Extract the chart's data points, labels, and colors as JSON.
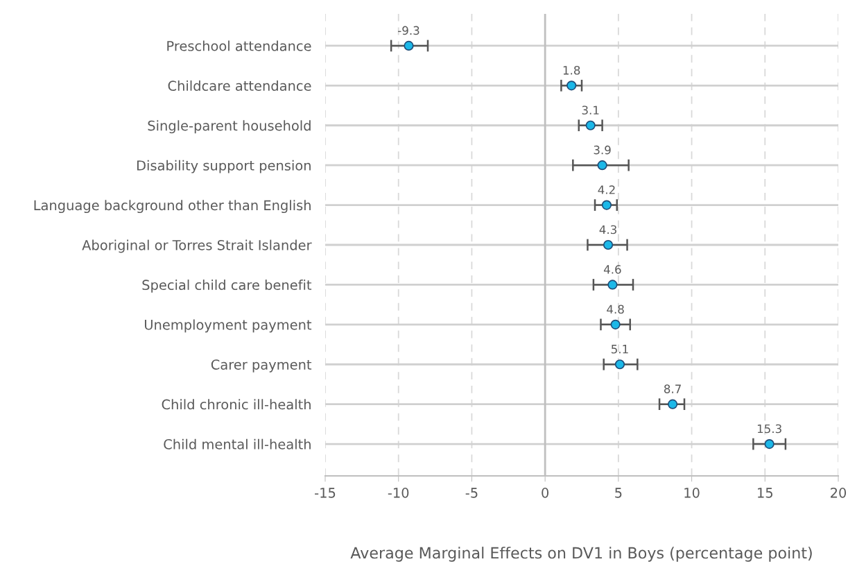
{
  "chart_data": {
    "type": "scatter",
    "orientation": "horizontal",
    "xlabel": "Average Marginal Effects on DV1 in Boys (percentage point)",
    "categories": [
      "Preschool attendance",
      "Childcare attendance",
      "Single-parent household",
      "Disability support pension",
      "Language background other than English",
      "Aboriginal or Torres Strait Islander",
      "Special child care benefit",
      "Unemployment payment",
      "Carer payment",
      "Child chronic ill-health",
      "Child mental ill-health"
    ],
    "values": [
      -9.3,
      1.8,
      3.1,
      3.9,
      4.2,
      4.3,
      4.6,
      4.8,
      5.1,
      8.7,
      15.3
    ],
    "errors": [
      [
        -10.5,
        -8.0
      ],
      [
        1.1,
        2.5
      ],
      [
        2.3,
        3.9
      ],
      [
        1.9,
        5.7
      ],
      [
        3.4,
        4.9
      ],
      [
        2.9,
        5.6
      ],
      [
        3.3,
        6.0
      ],
      [
        3.8,
        5.8
      ],
      [
        4.0,
        6.3
      ],
      [
        7.8,
        9.5
      ],
      [
        14.2,
        16.4
      ]
    ],
    "color": "#1cb8e8",
    "xlim": [
      -15,
      20
    ],
    "xticks": [
      -15,
      -10,
      -5,
      0,
      5,
      10,
      15,
      20
    ],
    "ref_lines": [
      {
        "axis": "x",
        "value": 0,
        "color": "#bfbfbf"
      }
    ],
    "data_labels": true,
    "grid": true,
    "marker": "circle"
  }
}
